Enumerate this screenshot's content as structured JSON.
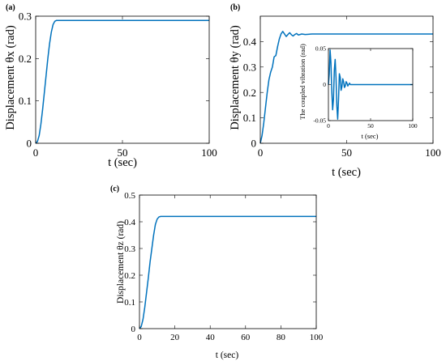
{
  "figure": {
    "background": "#ffffff",
    "line_color": "#0072BD"
  },
  "chart_data": [
    {
      "id": "a",
      "type": "line",
      "panel_label": "(a)",
      "xlabel": "t (sec)",
      "ylabel": "Displacement θx (rad)",
      "xlim": [
        0,
        100
      ],
      "ylim": [
        0,
        0.3
      ],
      "xticks": [
        0,
        50,
        100
      ],
      "yticks": [
        0,
        0.1,
        0.2,
        0.3
      ],
      "xtick_labels": [
        "0",
        "50",
        "100"
      ],
      "ytick_labels": [
        "0",
        "0.1",
        "0.2",
        "0.3"
      ],
      "grid": false,
      "series": [
        {
          "x": [
            0,
            1,
            2,
            3,
            4,
            5,
            6,
            7,
            8,
            9,
            10,
            11,
            12,
            100
          ],
          "y": [
            0,
            0.004,
            0.018,
            0.045,
            0.08,
            0.12,
            0.16,
            0.2,
            0.235,
            0.262,
            0.28,
            0.288,
            0.29,
            0.29
          ]
        }
      ]
    },
    {
      "id": "b",
      "type": "line",
      "panel_label": "(b)",
      "xlabel": "t (sec)",
      "ylabel": "Displacement θy (rad)",
      "xlim": [
        0,
        100
      ],
      "ylim": [
        0,
        0.5
      ],
      "xticks": [
        0,
        50,
        100
      ],
      "yticks": [
        0,
        0.1,
        0.2,
        0.3,
        0.4
      ],
      "xtick_labels": [
        "0",
        "50",
        "100"
      ],
      "ytick_labels": [
        "0",
        "0.1",
        "0.2",
        "0.3",
        "0.4"
      ],
      "grid": false,
      "series": [
        {
          "x": [
            0,
            1,
            2,
            3,
            4,
            5,
            6,
            7,
            8,
            9,
            10,
            11,
            12,
            13,
            14,
            15,
            16,
            17,
            18,
            19,
            20,
            21,
            22,
            24,
            26,
            30,
            100
          ],
          "y": [
            0,
            0.03,
            0.08,
            0.14,
            0.2,
            0.25,
            0.28,
            0.3,
            0.34,
            0.345,
            0.38,
            0.41,
            0.43,
            0.44,
            0.43,
            0.42,
            0.428,
            0.435,
            0.427,
            0.422,
            0.428,
            0.432,
            0.426,
            0.43,
            0.428,
            0.43,
            0.43
          ]
        }
      ]
    },
    {
      "id": "b-inset",
      "type": "line",
      "xlabel": "t (sec)",
      "ylabel": "The coupled vibration (rad)",
      "xlim": [
        0,
        100
      ],
      "ylim": [
        -0.05,
        0.05
      ],
      "xticks": [
        0,
        50,
        100
      ],
      "yticks": [
        -0.05,
        0,
        0.05
      ],
      "xtick_labels": [
        "0",
        "50",
        "100"
      ],
      "ytick_labels": [
        "-0.05",
        "0",
        "0.05"
      ],
      "grid": false,
      "series": [
        {
          "x": [
            0,
            1,
            2,
            3,
            4,
            5,
            6,
            7,
            8,
            9,
            10,
            11,
            12,
            13,
            14,
            15,
            16,
            17,
            18,
            19,
            20,
            21,
            22,
            23,
            24,
            25,
            26,
            28,
            30,
            100
          ],
          "y": [
            0,
            0.015,
            0.048,
            0.03,
            -0.01,
            -0.035,
            -0.02,
            0.02,
            0.035,
            0.01,
            -0.03,
            -0.048,
            -0.02,
            0.015,
            0.01,
            -0.008,
            -0.003,
            0.008,
            0.004,
            -0.004,
            -0.002,
            0.004,
            0.002,
            -0.002,
            0.0,
            0.002,
            0.0,
            0.0,
            0.0,
            0.0
          ]
        }
      ]
    },
    {
      "id": "c",
      "type": "line",
      "panel_label": "(c)",
      "xlabel": "t (sec)",
      "ylabel": "Displacement θz (rad)",
      "xlim": [
        0,
        100
      ],
      "ylim": [
        0,
        0.5
      ],
      "xticks": [
        0,
        20,
        40,
        60,
        80,
        100
      ],
      "yticks": [
        0,
        0.1,
        0.2,
        0.3,
        0.4,
        0.5
      ],
      "xtick_labels": [
        "0",
        "20",
        "40",
        "60",
        "80",
        "100"
      ],
      "ytick_labels": [
        "0",
        "0.1",
        "0.2",
        "0.3",
        "0.4",
        "0.5"
      ],
      "grid": false,
      "series": [
        {
          "x": [
            0,
            1,
            2,
            3,
            4,
            5,
            6,
            7,
            8,
            9,
            10,
            11,
            12,
            100
          ],
          "y": [
            0,
            0.008,
            0.035,
            0.08,
            0.135,
            0.19,
            0.25,
            0.3,
            0.35,
            0.39,
            0.41,
            0.418,
            0.42,
            0.42
          ]
        }
      ]
    }
  ]
}
